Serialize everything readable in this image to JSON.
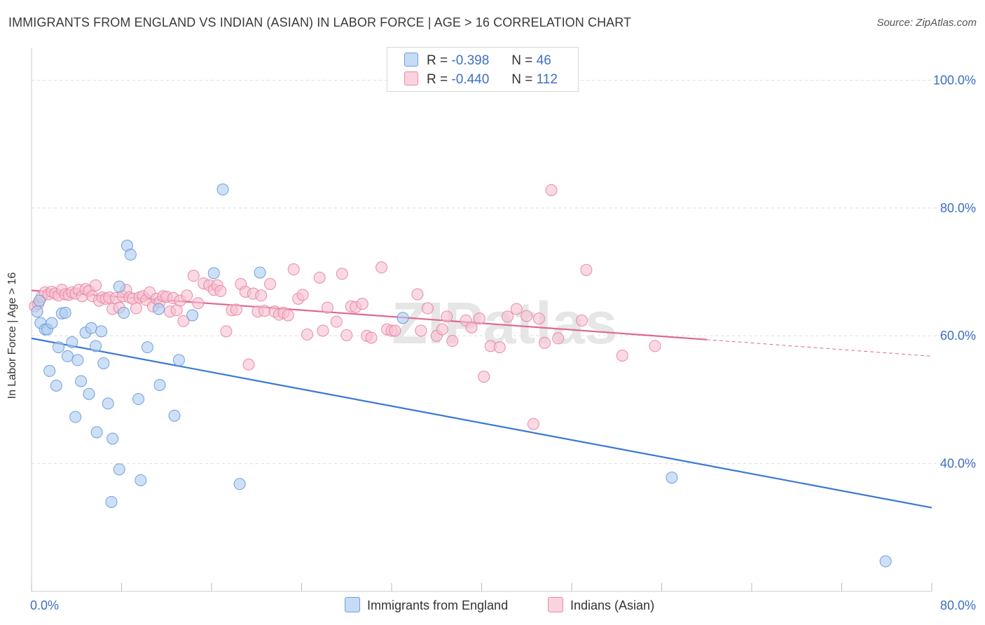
{
  "title": "IMMIGRANTS FROM ENGLAND VS INDIAN (ASIAN) IN LABOR FORCE | AGE > 16 CORRELATION CHART",
  "source": "Source: ZipAtlas.com",
  "watermark": "ZIPatlas",
  "legend": {
    "rows": [
      {
        "r_label": "R =",
        "r_value": "-0.398",
        "n_label": "N =",
        "n_value": "46"
      },
      {
        "r_label": "R =",
        "r_value": "-0.440",
        "n_label": "N =",
        "n_value": "112"
      }
    ]
  },
  "colors": {
    "blue_fill": "#aecbf0",
    "blue_stroke": "#6f9fdc",
    "blue_line": "#3a78d4",
    "pink_fill": "#f7bfd0",
    "pink_stroke": "#e88aa8",
    "pink_line": "#e0668f",
    "axis_text": "#3d6fc4",
    "grid": "#dddddd"
  },
  "chart_data": {
    "type": "scatter",
    "xlabel": "",
    "ylabel": "In Labor Force | Age > 16",
    "xlim": [
      0,
      80
    ],
    "ylim": [
      20,
      104
    ],
    "x_tick_labels": [
      "0.0%",
      "80.0%"
    ],
    "y_ticks": [
      40,
      60,
      80,
      100
    ],
    "y_tick_labels": [
      "40.0%",
      "60.0%",
      "80.0%",
      "100.0%"
    ],
    "grid": true,
    "legend_position": "top-center",
    "series": [
      {
        "name": "Immigrants from England",
        "color": "#aecbf0",
        "points": [
          [
            0.5,
            63.8
          ],
          [
            0.7,
            65.5
          ],
          [
            0.8,
            62.0
          ],
          [
            1.2,
            61.0
          ],
          [
            1.4,
            61.0
          ],
          [
            1.6,
            54.5
          ],
          [
            1.8,
            62.0
          ],
          [
            2.2,
            52.2
          ],
          [
            2.4,
            58.2
          ],
          [
            2.7,
            63.5
          ],
          [
            3.0,
            63.6
          ],
          [
            3.2,
            56.8
          ],
          [
            3.6,
            59.0
          ],
          [
            3.9,
            47.3
          ],
          [
            4.1,
            56.2
          ],
          [
            4.4,
            52.9
          ],
          [
            4.8,
            60.5
          ],
          [
            5.1,
            50.9
          ],
          [
            5.3,
            61.2
          ],
          [
            5.7,
            58.4
          ],
          [
            5.8,
            44.9
          ],
          [
            6.2,
            60.7
          ],
          [
            6.4,
            55.7
          ],
          [
            6.8,
            49.4
          ],
          [
            7.2,
            43.9
          ],
          [
            7.1,
            34.0
          ],
          [
            7.8,
            67.7
          ],
          [
            7.8,
            39.1
          ],
          [
            8.2,
            63.6
          ],
          [
            8.5,
            74.1
          ],
          [
            8.8,
            72.7
          ],
          [
            9.5,
            50.1
          ],
          [
            9.7,
            37.4
          ],
          [
            10.3,
            58.2
          ],
          [
            11.3,
            64.2
          ],
          [
            11.4,
            52.3
          ],
          [
            12.7,
            47.5
          ],
          [
            13.1,
            56.2
          ],
          [
            14.3,
            63.2
          ],
          [
            16.2,
            69.8
          ],
          [
            17.0,
            82.9
          ],
          [
            18.5,
            36.8
          ],
          [
            20.3,
            69.9
          ],
          [
            33.0,
            62.8
          ],
          [
            56.9,
            37.8
          ],
          [
            75.9,
            24.7
          ]
        ]
      },
      {
        "name": "Indians (Asian)",
        "color": "#f7bfd0",
        "points": [
          [
            0.3,
            64.6
          ],
          [
            0.6,
            65.0
          ],
          [
            0.9,
            66.1
          ],
          [
            1.2,
            66.8
          ],
          [
            1.5,
            66.5
          ],
          [
            1.8,
            66.9
          ],
          [
            2.1,
            66.6
          ],
          [
            2.4,
            66.3
          ],
          [
            2.7,
            67.2
          ],
          [
            3.0,
            66.5
          ],
          [
            3.3,
            66.4
          ],
          [
            3.6,
            66.8
          ],
          [
            3.9,
            66.6
          ],
          [
            4.2,
            67.2
          ],
          [
            4.5,
            66.2
          ],
          [
            4.8,
            67.3
          ],
          [
            5.1,
            67.0
          ],
          [
            5.4,
            66.2
          ],
          [
            5.7,
            67.9
          ],
          [
            6.0,
            65.5
          ],
          [
            6.3,
            66.0
          ],
          [
            6.6,
            65.8
          ],
          [
            6.9,
            66.0
          ],
          [
            7.2,
            64.2
          ],
          [
            7.5,
            65.9
          ],
          [
            7.8,
            64.4
          ],
          [
            8.1,
            66.2
          ],
          [
            8.4,
            67.2
          ],
          [
            8.7,
            66.0
          ],
          [
            9.0,
            65.8
          ],
          [
            9.3,
            64.3
          ],
          [
            9.6,
            66.0
          ],
          [
            9.9,
            66.2
          ],
          [
            10.2,
            65.6
          ],
          [
            10.5,
            66.8
          ],
          [
            10.8,
            64.6
          ],
          [
            11.1,
            65.8
          ],
          [
            11.4,
            65.3
          ],
          [
            11.7,
            66.2
          ],
          [
            12.0,
            66.1
          ],
          [
            12.3,
            63.8
          ],
          [
            12.6,
            65.9
          ],
          [
            12.9,
            64.0
          ],
          [
            13.2,
            65.5
          ],
          [
            13.5,
            62.3
          ],
          [
            13.8,
            66.3
          ],
          [
            14.4,
            69.4
          ],
          [
            14.8,
            65.1
          ],
          [
            15.3,
            68.2
          ],
          [
            15.8,
            67.9
          ],
          [
            16.2,
            67.2
          ],
          [
            16.5,
            67.9
          ],
          [
            16.8,
            67.0
          ],
          [
            17.3,
            60.7
          ],
          [
            17.8,
            64.0
          ],
          [
            18.2,
            64.1
          ],
          [
            18.6,
            68.1
          ],
          [
            19.0,
            66.9
          ],
          [
            19.3,
            55.5
          ],
          [
            19.7,
            66.6
          ],
          [
            20.1,
            63.8
          ],
          [
            20.4,
            66.3
          ],
          [
            20.7,
            63.9
          ],
          [
            21.2,
            68.1
          ],
          [
            21.6,
            63.8
          ],
          [
            22.0,
            63.3
          ],
          [
            22.4,
            63.6
          ],
          [
            22.8,
            63.2
          ],
          [
            23.3,
            70.4
          ],
          [
            23.7,
            65.8
          ],
          [
            24.1,
            66.4
          ],
          [
            24.5,
            60.2
          ],
          [
            25.6,
            69.1
          ],
          [
            25.9,
            60.8
          ],
          [
            26.3,
            64.4
          ],
          [
            27.1,
            62.2
          ],
          [
            27.6,
            69.7
          ],
          [
            28.0,
            60.1
          ],
          [
            28.4,
            64.6
          ],
          [
            28.8,
            64.5
          ],
          [
            29.4,
            65.0
          ],
          [
            29.8,
            60.0
          ],
          [
            30.2,
            59.7
          ],
          [
            31.1,
            70.7
          ],
          [
            31.6,
            61.0
          ],
          [
            32.0,
            60.8
          ],
          [
            32.3,
            60.8
          ],
          [
            34.3,
            66.5
          ],
          [
            34.6,
            60.8
          ],
          [
            35.2,
            64.3
          ],
          [
            36.0,
            60.0
          ],
          [
            36.5,
            61.0
          ],
          [
            36.9,
            63.0
          ],
          [
            37.4,
            59.2
          ],
          [
            38.6,
            62.4
          ],
          [
            39.1,
            61.3
          ],
          [
            39.8,
            62.7
          ],
          [
            40.2,
            53.6
          ],
          [
            40.8,
            58.4
          ],
          [
            41.6,
            58.2
          ],
          [
            42.3,
            63.0
          ],
          [
            43.1,
            64.2
          ],
          [
            44.0,
            63.1
          ],
          [
            44.6,
            46.2
          ],
          [
            45.1,
            62.7
          ],
          [
            45.6,
            58.9
          ],
          [
            46.2,
            82.8
          ],
          [
            46.8,
            59.6
          ],
          [
            48.9,
            62.4
          ],
          [
            49.3,
            70.3
          ],
          [
            52.5,
            56.9
          ],
          [
            55.4,
            58.4
          ]
        ]
      }
    ],
    "trend_lines": [
      {
        "series": "Immigrants from England",
        "x": [
          0,
          80
        ],
        "y": [
          59.6,
          33.1
        ]
      },
      {
        "series": "Indians (Asian)",
        "x": [
          0,
          60
        ],
        "y": [
          67.1,
          59.4
        ],
        "dashed_extension_to_x": 80,
        "dashed_extension_y": 56.8
      }
    ]
  }
}
